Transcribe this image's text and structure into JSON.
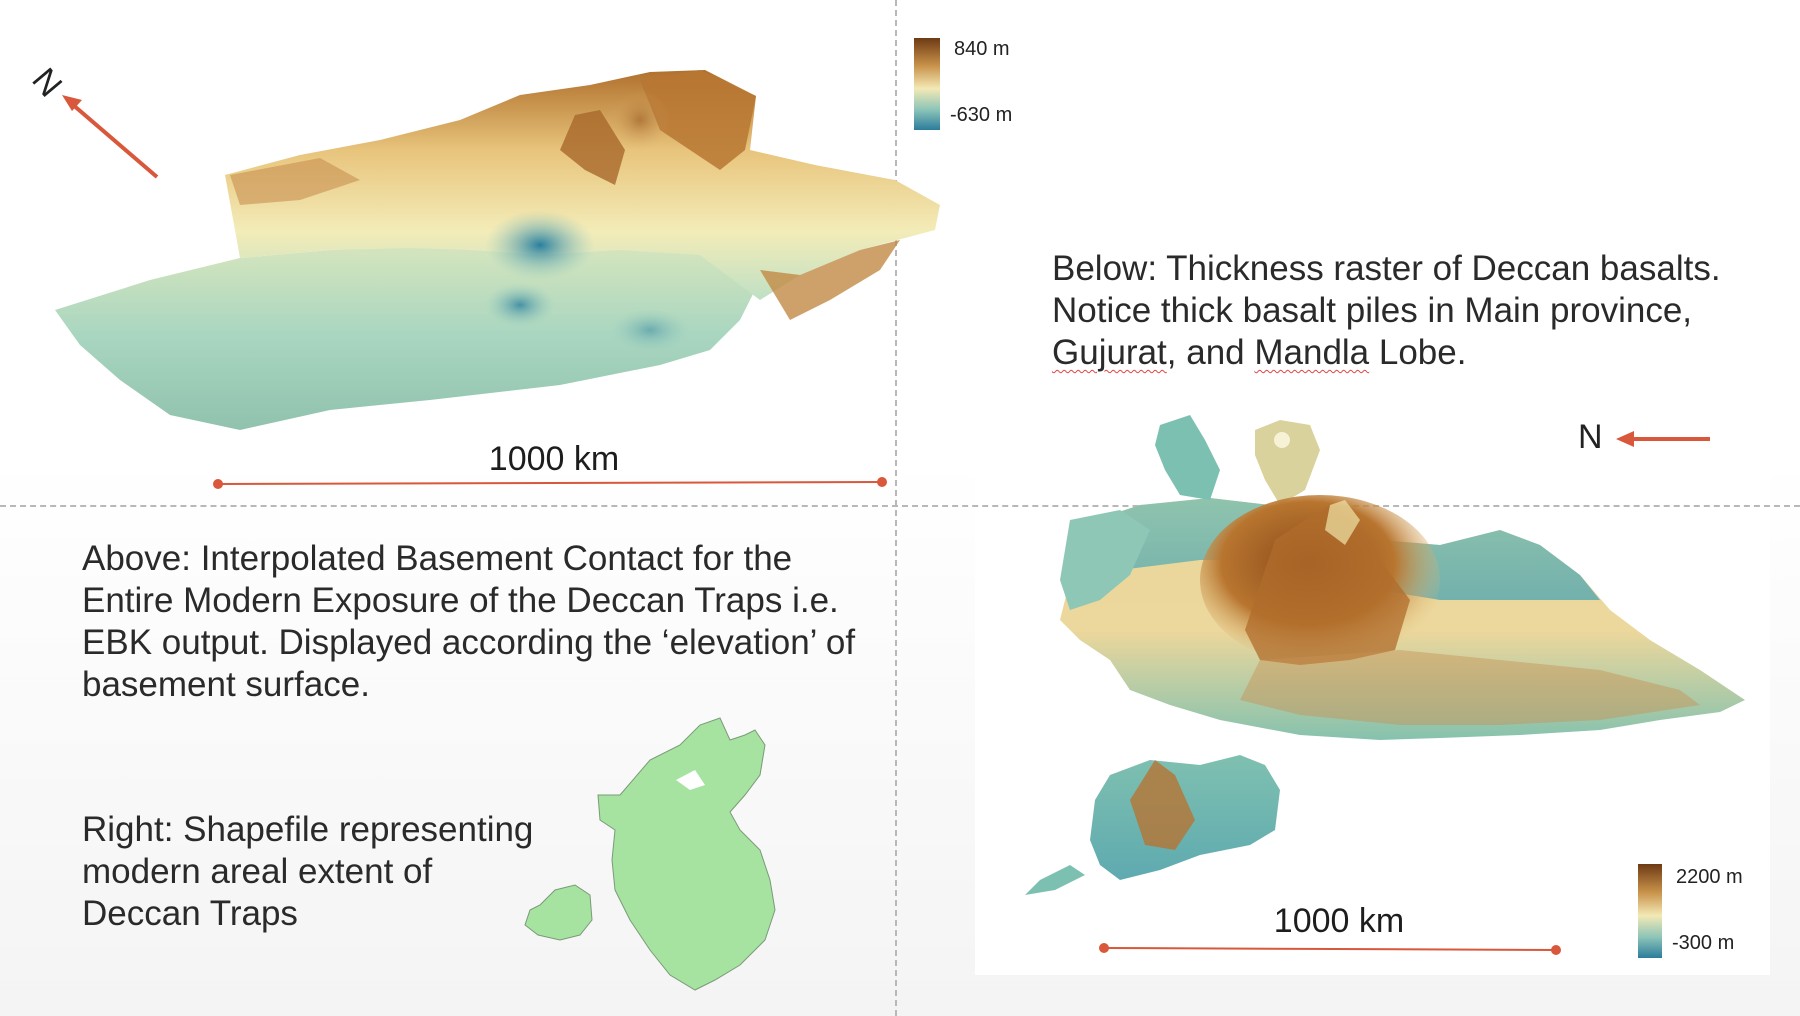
{
  "top_left_map": {
    "north_label": "N",
    "scale_label": "1000 km",
    "legend": {
      "max_label": "840 m",
      "min_label": "-630 m"
    }
  },
  "right_map": {
    "north_label": "N",
    "scale_label": "1000 km",
    "legend": {
      "max_label": "2200 m",
      "min_label": "-300 m"
    }
  },
  "captions": {
    "below": {
      "line1": "Below: Thickness raster of Deccan basalts.",
      "line2": "Notice thick basalt piles in Main province,",
      "line3_word1": "Gujurat",
      "line3_mid": ", and ",
      "line3_word2": "Mandla",
      "line3_end": " Lobe."
    },
    "above": {
      "line1": "Above: Interpolated Basement Contact for the",
      "line2": "Entire Modern Exposure of the Deccan Traps i.e.",
      "line3": "EBK output. Displayed according the ‘elevation’ of",
      "line4": "basement surface."
    },
    "right": {
      "line1": "Right: Shapefile representing",
      "line2": "modern areal extent of",
      "line3": "Deccan Traps"
    }
  },
  "colors": {
    "accent_arrow": "#d9573b",
    "elevation_high": "#7a3f16",
    "elevation_mid": "#f2e8b0",
    "elevation_low": "#2a7f9e",
    "shapefile_fill": "#a6e3a1"
  }
}
